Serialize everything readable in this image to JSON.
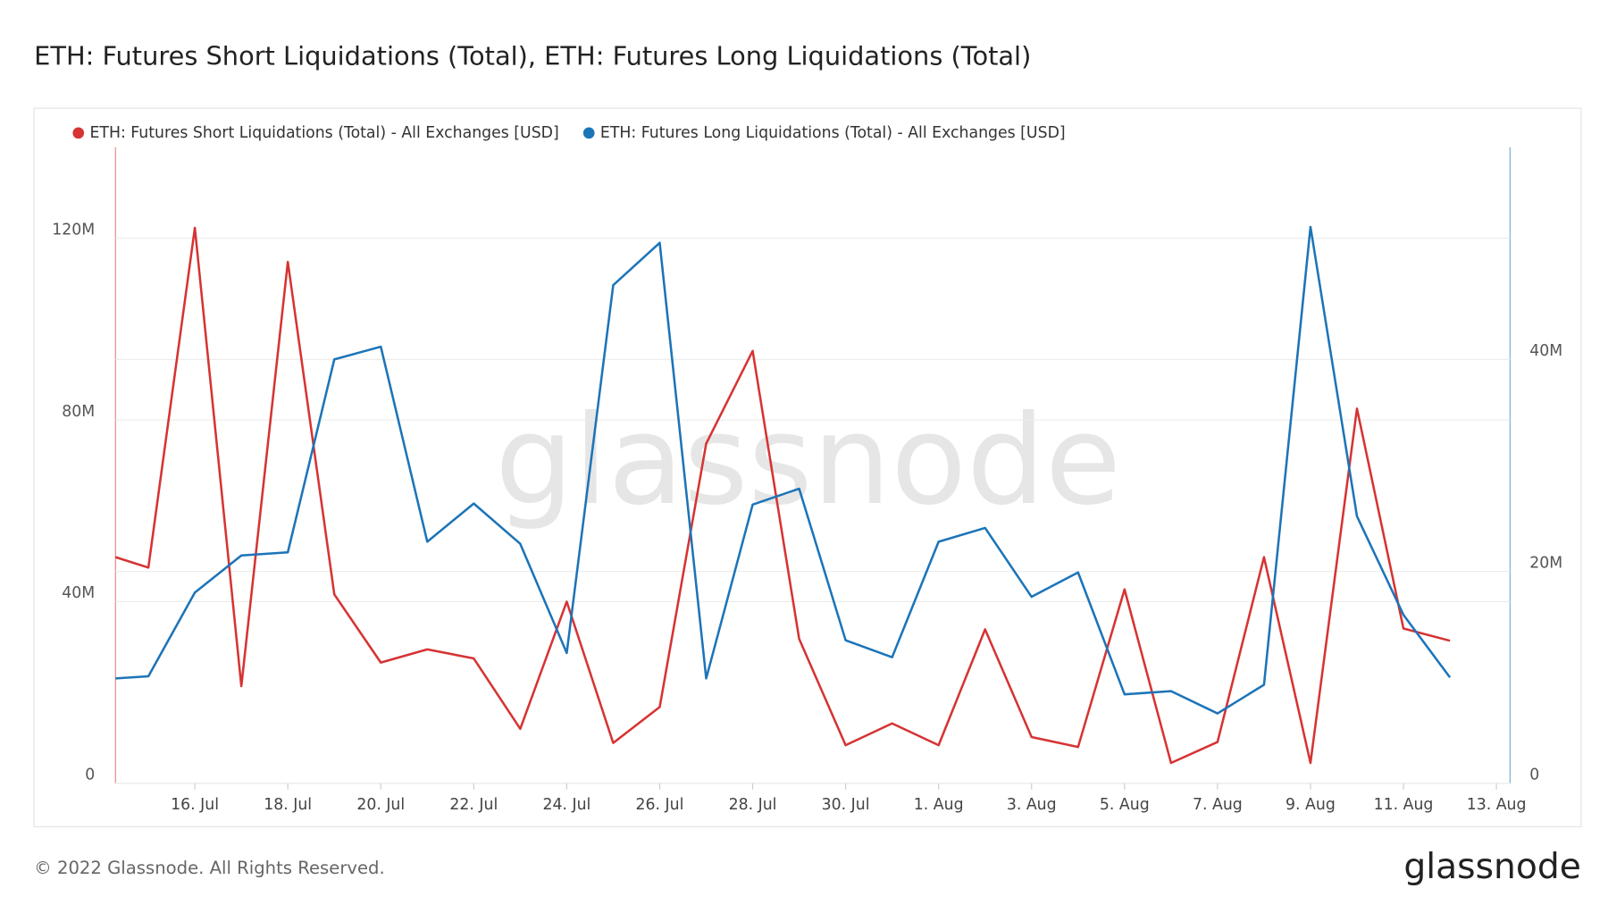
{
  "chart_data": {
    "type": "line",
    "title": "ETH: Futures Short Liquidations (Total), ETH: Futures Long Liquidations (Total)",
    "watermark": "glassnode",
    "footer": "© 2022 Glassnode. All Rights Reserved.",
    "logo": "glassnode",
    "x": [
      null,
      "15. Jul",
      "16. Jul",
      "17. Jul",
      "18. Jul",
      "19. Jul",
      "20. Jul",
      "21. Jul",
      "22. Jul",
      "23. Jul",
      "24. Jul",
      "25. Jul",
      "26. Jul",
      "27. Jul",
      "28. Jul",
      "29. Jul",
      "30. Jul",
      "31. Jul",
      "1. Aug",
      "2. Aug",
      "3. Aug",
      "4. Aug",
      "5. Aug",
      "6. Aug",
      "7. Aug",
      "8. Aug",
      "9. Aug",
      "10. Aug",
      "11. Aug",
      "12. Aug"
    ],
    "xticks": [
      "16. Jul",
      "18. Jul",
      "20. Jul",
      "22. Jul",
      "24. Jul",
      "26. Jul",
      "28. Jul",
      "30. Jul",
      "1. Aug",
      "3. Aug",
      "5. Aug",
      "7. Aug",
      "9. Aug",
      "11. Aug",
      "13. Aug"
    ],
    "ylim": [
      0,
      140000000
    ],
    "yticks": [
      0,
      {
        "value": 40000000,
        "label": "40M"
      },
      {
        "value": 80000000,
        "label": "80M"
      },
      {
        "value": 120000000,
        "label": "120M"
      }
    ],
    "y2lim": [
      0,
      60000000
    ],
    "y2ticks": [
      0,
      {
        "value": 20000000,
        "label": "20M"
      },
      {
        "value": 40000000,
        "label": "40M"
      }
    ],
    "grid": true,
    "legend": "top-left",
    "series": [
      {
        "name": "ETH: Futures Short Liquidations (Total) - All Exchanges [USD]",
        "color": "#d63333",
        "axis": "y",
        "values": [
          49800000,
          47500000,
          122300000,
          21400000,
          114800000,
          41600000,
          26600000,
          29500000,
          27500000,
          12000000,
          40000000,
          8900000,
          16800000,
          74800000,
          95200000,
          31800000,
          8400000,
          13200000,
          8400000,
          33900000,
          10200000,
          8000000,
          42700000,
          4500000,
          9100000,
          49800000,
          4500000,
          82500000,
          34100000,
          31400000
        ]
      },
      {
        "name": "ETH: Futures Long Liquidations (Total) - All Exchanges [USD]",
        "color": "#1c74b8",
        "axis": "y2",
        "values": [
          9900000,
          10100000,
          18000000,
          21500000,
          21800000,
          40000000,
          41200000,
          22800000,
          26400000,
          22600000,
          12300000,
          47000000,
          51000000,
          9900000,
          26300000,
          27800000,
          13500000,
          11900000,
          22800000,
          24100000,
          17600000,
          19900000,
          8400000,
          8700000,
          6600000,
          9300000,
          52500000,
          25200000,
          15900000,
          10000000
        ]
      }
    ]
  }
}
